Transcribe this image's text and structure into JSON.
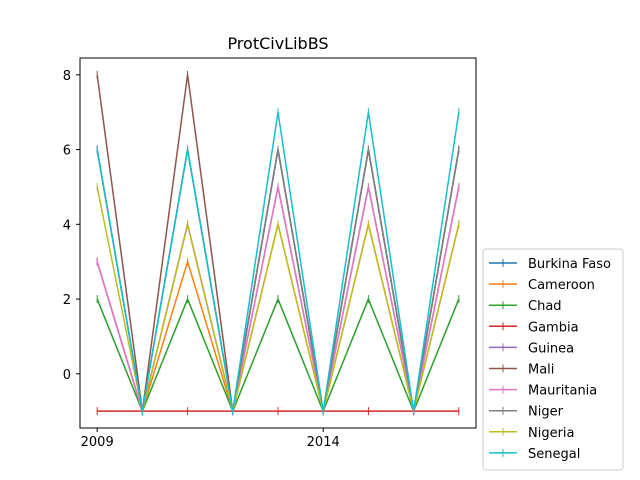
{
  "chart_data": {
    "type": "line",
    "title": "ProtCivLibBS",
    "xlabel": "",
    "ylabel": "",
    "x": [
      2009,
      2010,
      2011,
      2012,
      2013,
      2014,
      2015,
      2016,
      2017
    ],
    "xlim": [
      2008.62,
      2017.38
    ],
    "ylim": [
      -1.45,
      8.45
    ],
    "xticks": [
      2009,
      2014
    ],
    "yticks": [
      0,
      2,
      4,
      6,
      8
    ],
    "grid": false,
    "legend_position": "outside-right-bottom",
    "series": [
      {
        "name": "Burkina Faso",
        "color": "#1f77b4",
        "values": [
          6,
          -1,
          6,
          -1,
          6,
          -1,
          6,
          -1,
          6
        ]
      },
      {
        "name": "Cameroon",
        "color": "#ff7f0e",
        "values": [
          3,
          -1,
          3,
          -1,
          4,
          -1,
          4,
          -1,
          4
        ]
      },
      {
        "name": "Chad",
        "color": "#2ca02c",
        "values": [
          2,
          -1,
          2,
          -1,
          2,
          -1,
          2,
          -1,
          2
        ]
      },
      {
        "name": "Gambia",
        "color": "#d62728",
        "values": [
          -1,
          -1,
          -1,
          -1,
          -1,
          -1,
          -1,
          -1,
          -1
        ]
      },
      {
        "name": "Guinea",
        "color": "#9467bd",
        "values": [
          3,
          -1,
          4,
          -1,
          5,
          -1,
          5,
          -1,
          5
        ]
      },
      {
        "name": "Mali",
        "color": "#8c564b",
        "values": [
          8,
          -1,
          8,
          -1,
          6,
          -1,
          6,
          -1,
          6
        ]
      },
      {
        "name": "Mauritania",
        "color": "#e377c2",
        "values": [
          3,
          -1,
          4,
          -1,
          5,
          -1,
          5,
          -1,
          5
        ]
      },
      {
        "name": "Niger",
        "color": "#7f7f7f",
        "values": [
          6,
          -1,
          6,
          -1,
          6,
          -1,
          6,
          -1,
          6
        ]
      },
      {
        "name": "Nigeria",
        "color": "#bcbd22",
        "values": [
          5,
          -1,
          4,
          -1,
          4,
          -1,
          4,
          -1,
          4
        ]
      },
      {
        "name": "Senegal",
        "color": "#17becf",
        "values": [
          6,
          -1,
          6,
          -1,
          7,
          -1,
          7,
          -1,
          7
        ]
      }
    ]
  }
}
